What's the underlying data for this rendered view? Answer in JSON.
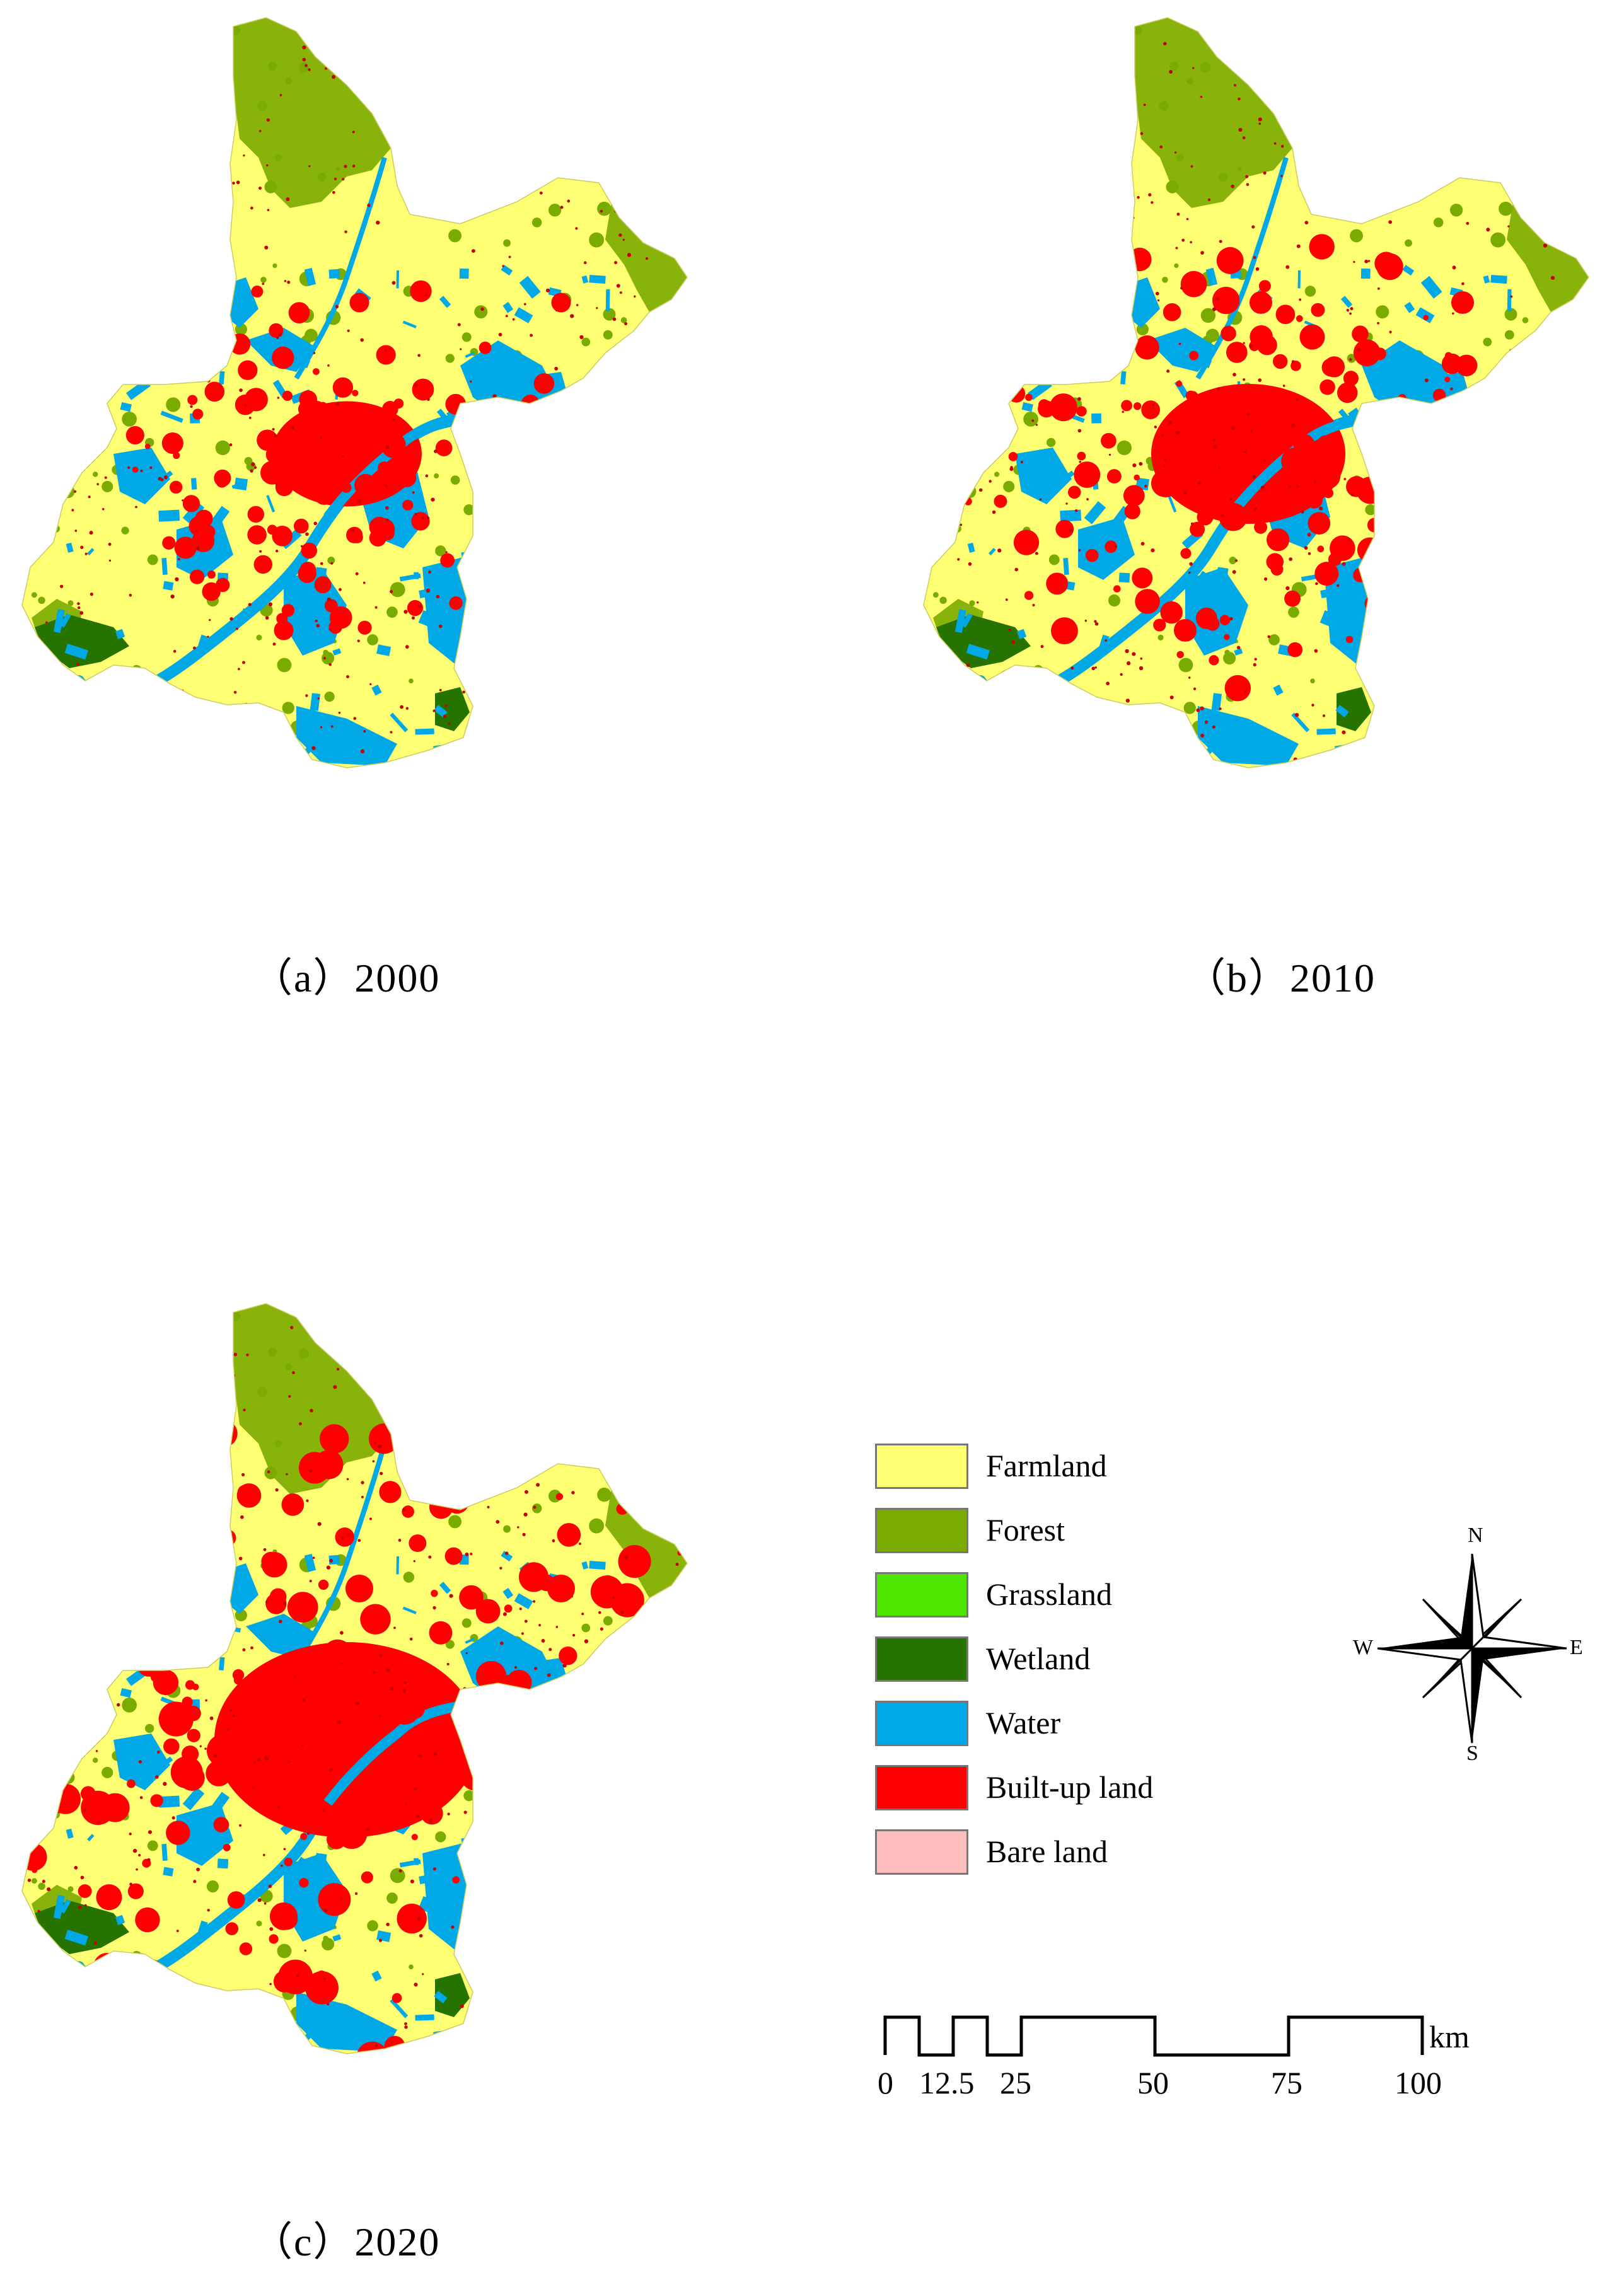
{
  "panels": [
    {
      "caption": "（a）2000",
      "built_up_extent": 0.35
    },
    {
      "caption": "（b）2010",
      "built_up_extent": 0.6
    },
    {
      "caption": "（c）2020",
      "built_up_extent": 1.0
    }
  ],
  "legend": [
    {
      "label": "Farmland",
      "color": "#ffff73"
    },
    {
      "label": "Forest",
      "color": "#7aab00"
    },
    {
      "label": "Grassland",
      "color": "#4ce600"
    },
    {
      "label": "Wetland",
      "color": "#267300"
    },
    {
      "label": "Water",
      "color": "#00a9e6"
    },
    {
      "label": "Built-up land",
      "color": "#ff0000"
    },
    {
      "label": "Bare land",
      "color": "#ffbebe"
    }
  ],
  "north_arrow": {
    "n": "N",
    "s": "S",
    "e": "E",
    "w": "W"
  },
  "scale_bar": {
    "unit": "km",
    "labels": [
      "0",
      "12.5",
      "25",
      "50",
      "75",
      "100"
    ]
  }
}
